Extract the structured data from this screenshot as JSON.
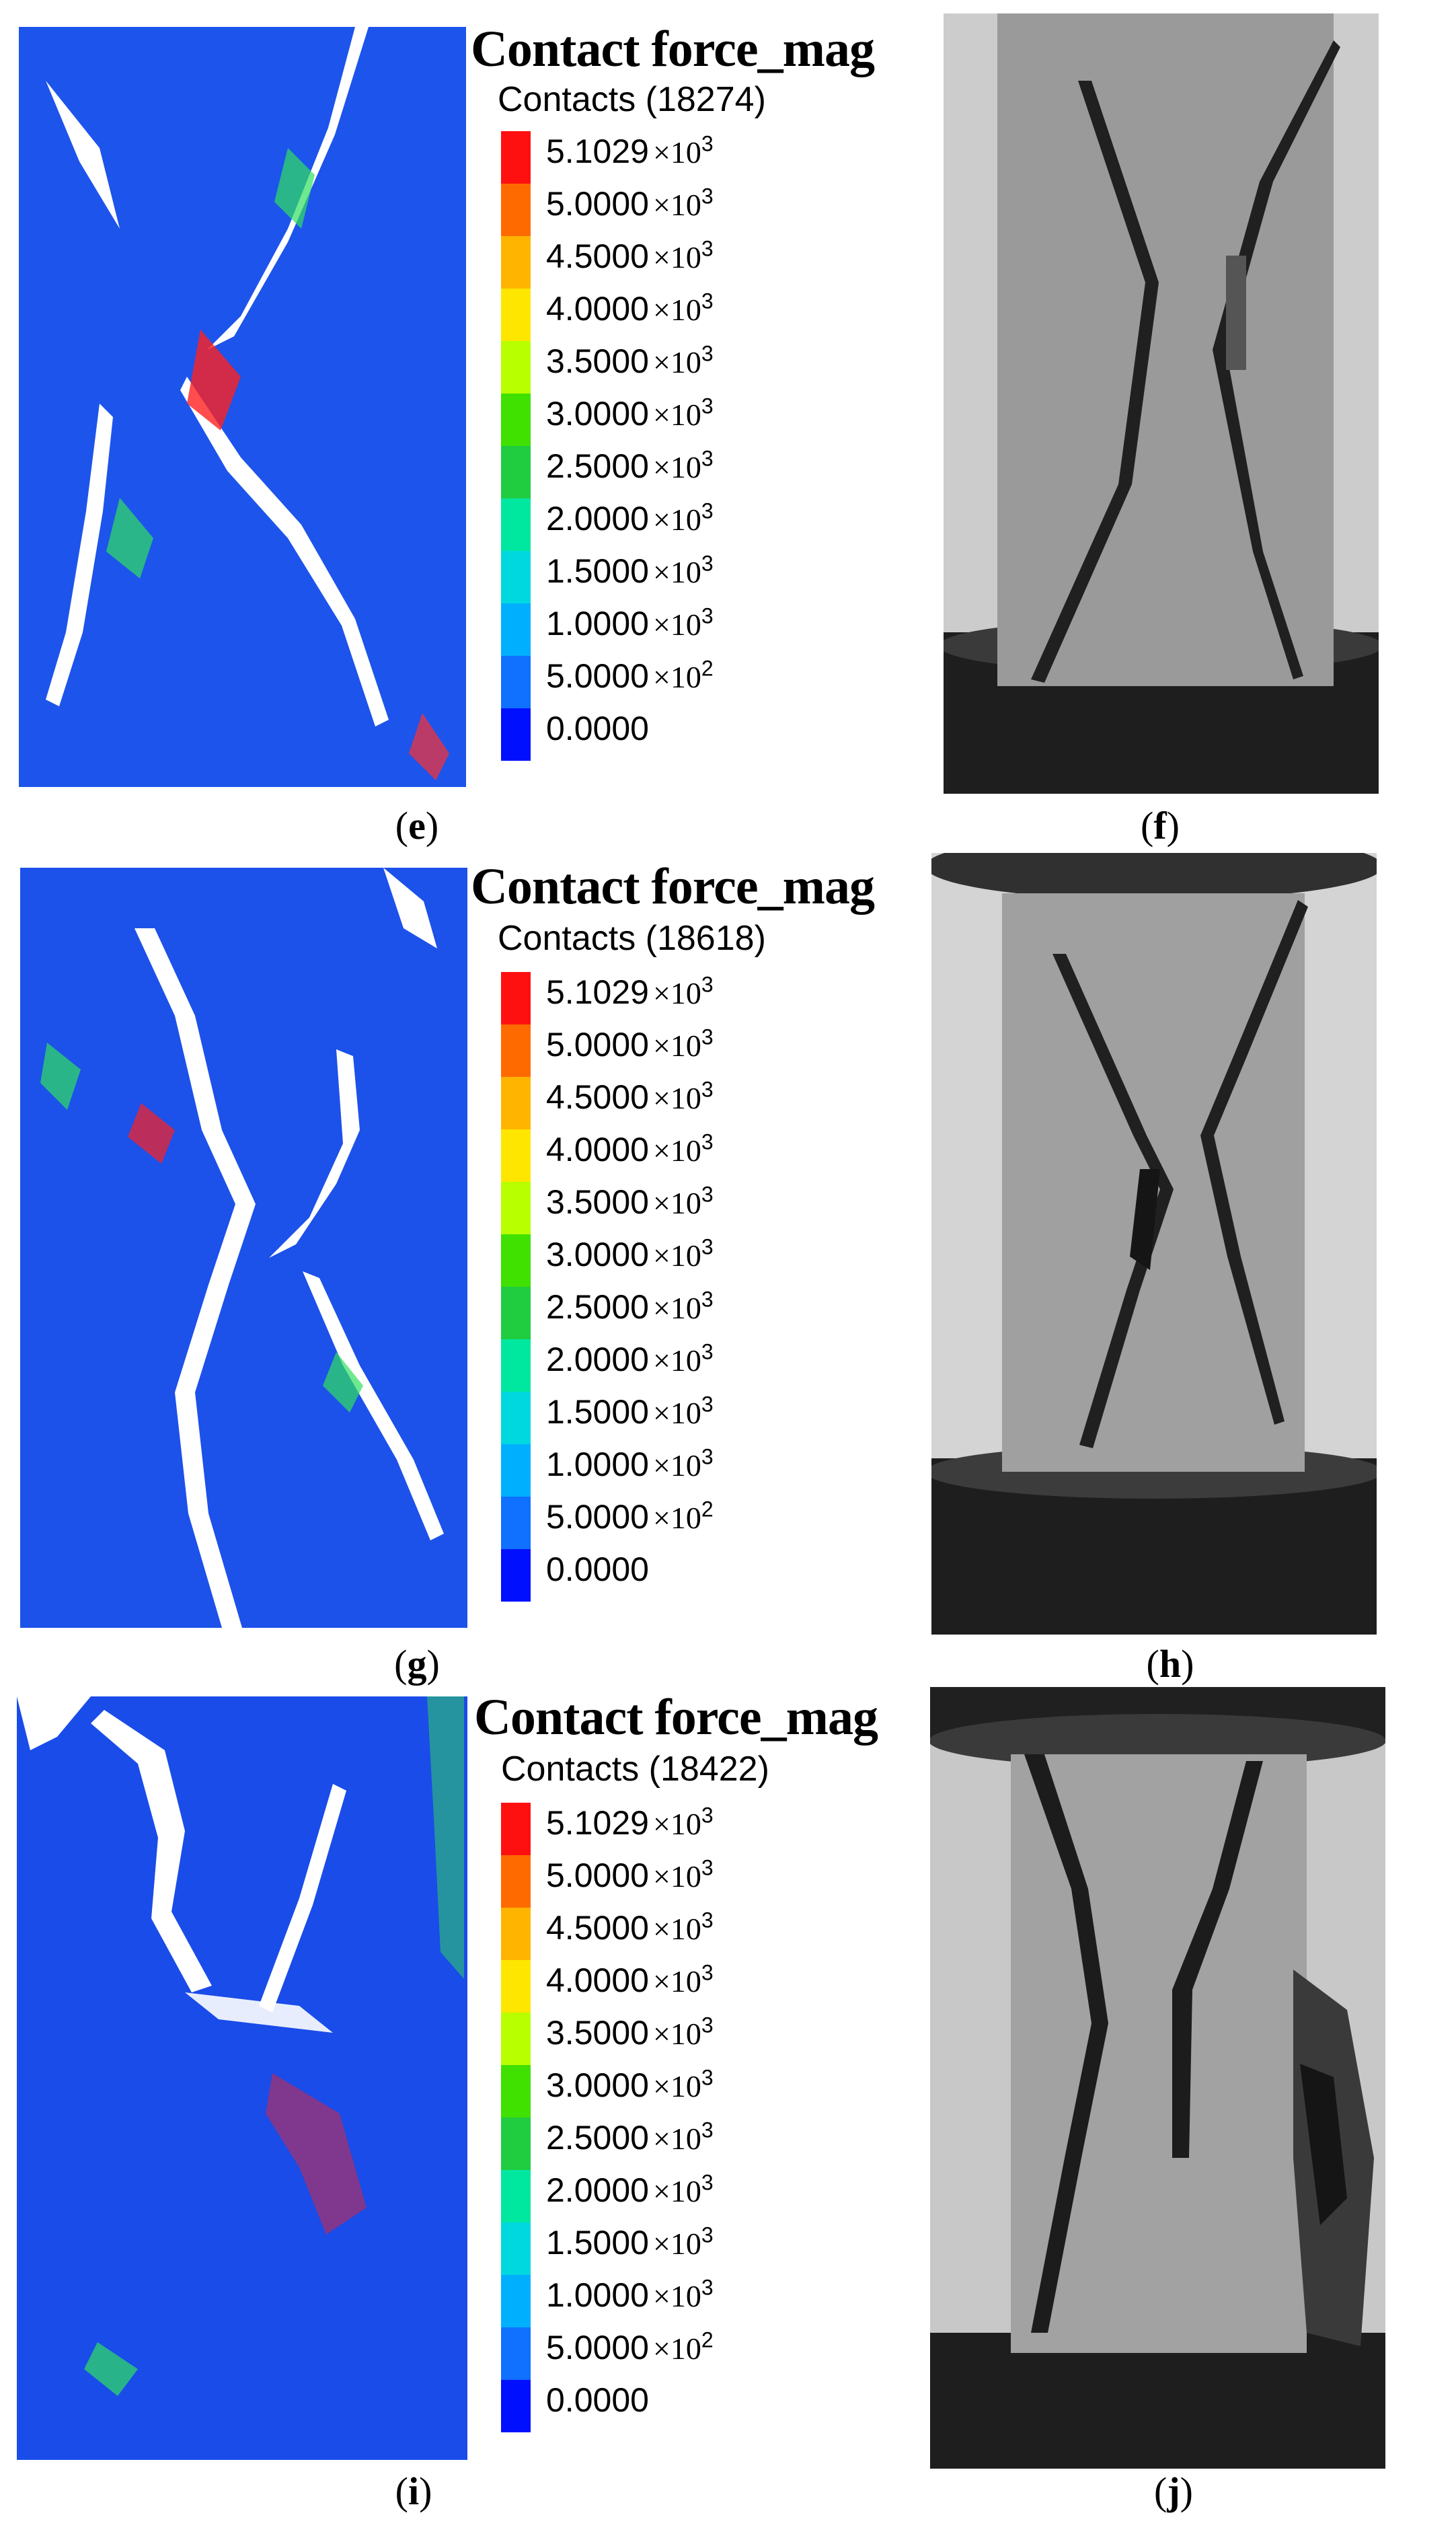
{
  "legend_title": "Contact force_mag",
  "colorbar_colors": [
    "#ff1010",
    "#ff6a00",
    "#ffb400",
    "#ffe600",
    "#b8ff00",
    "#40e000",
    "#20cc40",
    "#00e8a0",
    "#00d8e0",
    "#00b0ff",
    "#1070ff",
    "#0010ff"
  ],
  "rows": [
    {
      "contacts_label": "Contacts (18274)",
      "sim_caption": {
        "open": "(",
        "letter": "e",
        "close": ")"
      },
      "photo_caption": {
        "open": "(",
        "letter": "f",
        "close": ")"
      }
    },
    {
      "contacts_label": "Contacts (18618)",
      "sim_caption": {
        "open": "(",
        "letter": "g",
        "close": ")"
      },
      "photo_caption": {
        "open": "(",
        "letter": "h",
        "close": ")"
      }
    },
    {
      "contacts_label": "Contacts (18422)",
      "sim_caption": {
        "open": "(",
        "letter": "i",
        "close": ")"
      },
      "photo_caption": {
        "open": "(",
        "letter": "j",
        "close": ")"
      }
    }
  ],
  "legend_ticks": [
    {
      "mantissa": "5.1029",
      "times": "×10",
      "exp": "3"
    },
    {
      "mantissa": "5.0000",
      "times": "×10",
      "exp": "3"
    },
    {
      "mantissa": "4.5000",
      "times": "×10",
      "exp": "3"
    },
    {
      "mantissa": "4.0000",
      "times": "×10",
      "exp": "3"
    },
    {
      "mantissa": "3.5000",
      "times": "×10",
      "exp": "3"
    },
    {
      "mantissa": "3.0000",
      "times": "×10",
      "exp": "3"
    },
    {
      "mantissa": "2.5000",
      "times": "×10",
      "exp": "3"
    },
    {
      "mantissa": "2.0000",
      "times": "×10",
      "exp": "3"
    },
    {
      "mantissa": "1.5000",
      "times": "×10",
      "exp": "3"
    },
    {
      "mantissa": "1.0000",
      "times": "×10",
      "exp": "3"
    },
    {
      "mantissa": "5.0000",
      "times": "×10",
      "exp": "2"
    },
    {
      "mantissa": "0.0000",
      "times": "",
      "exp": ""
    }
  ]
}
